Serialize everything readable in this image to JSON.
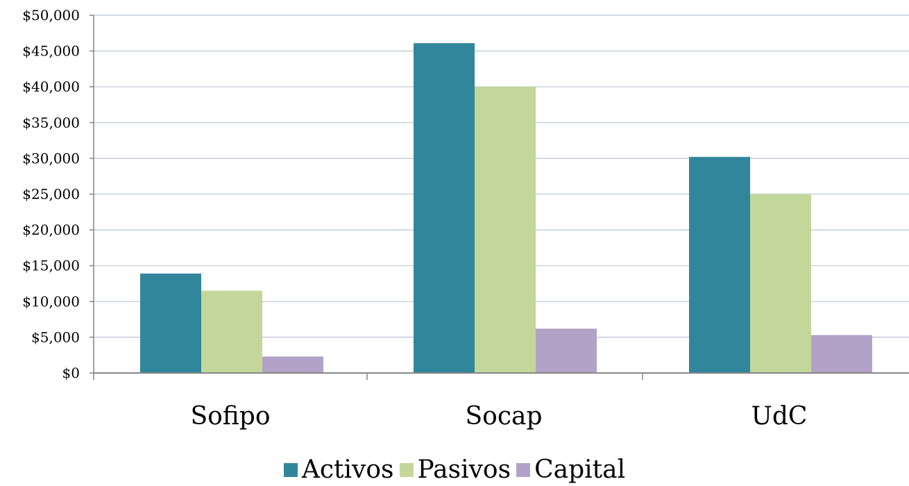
{
  "chart_data": {
    "type": "bar",
    "categories": [
      "Sofipo",
      "Socap",
      "UdC"
    ],
    "series": [
      {
        "name": "Activos",
        "values": [
          13900,
          46100,
          30200
        ],
        "color": "#31869B"
      },
      {
        "name": "Pasivos",
        "values": [
          11500,
          40000,
          25000
        ],
        "color": "#C4D79B"
      },
      {
        "name": "Capital",
        "values": [
          2300,
          6200,
          5300
        ],
        "color": "#B3A2C7"
      }
    ],
    "title": "",
    "xlabel": "",
    "ylabel": "",
    "ylim": [
      0,
      50000
    ],
    "yticks": [
      "$0",
      "$5,000",
      "$10,000",
      "$15,000",
      "$20,000",
      "$25,000",
      "$30,000",
      "$35,000",
      "$40,000",
      "$45,000",
      "$50,000"
    ],
    "ytick_values": [
      0,
      5000,
      10000,
      15000,
      20000,
      25000,
      30000,
      35000,
      40000,
      45000,
      50000
    ],
    "grid": true,
    "legend_position": "bottom",
    "colors": {
      "gridline": "#B7C6DA",
      "axis": "#868686"
    }
  }
}
